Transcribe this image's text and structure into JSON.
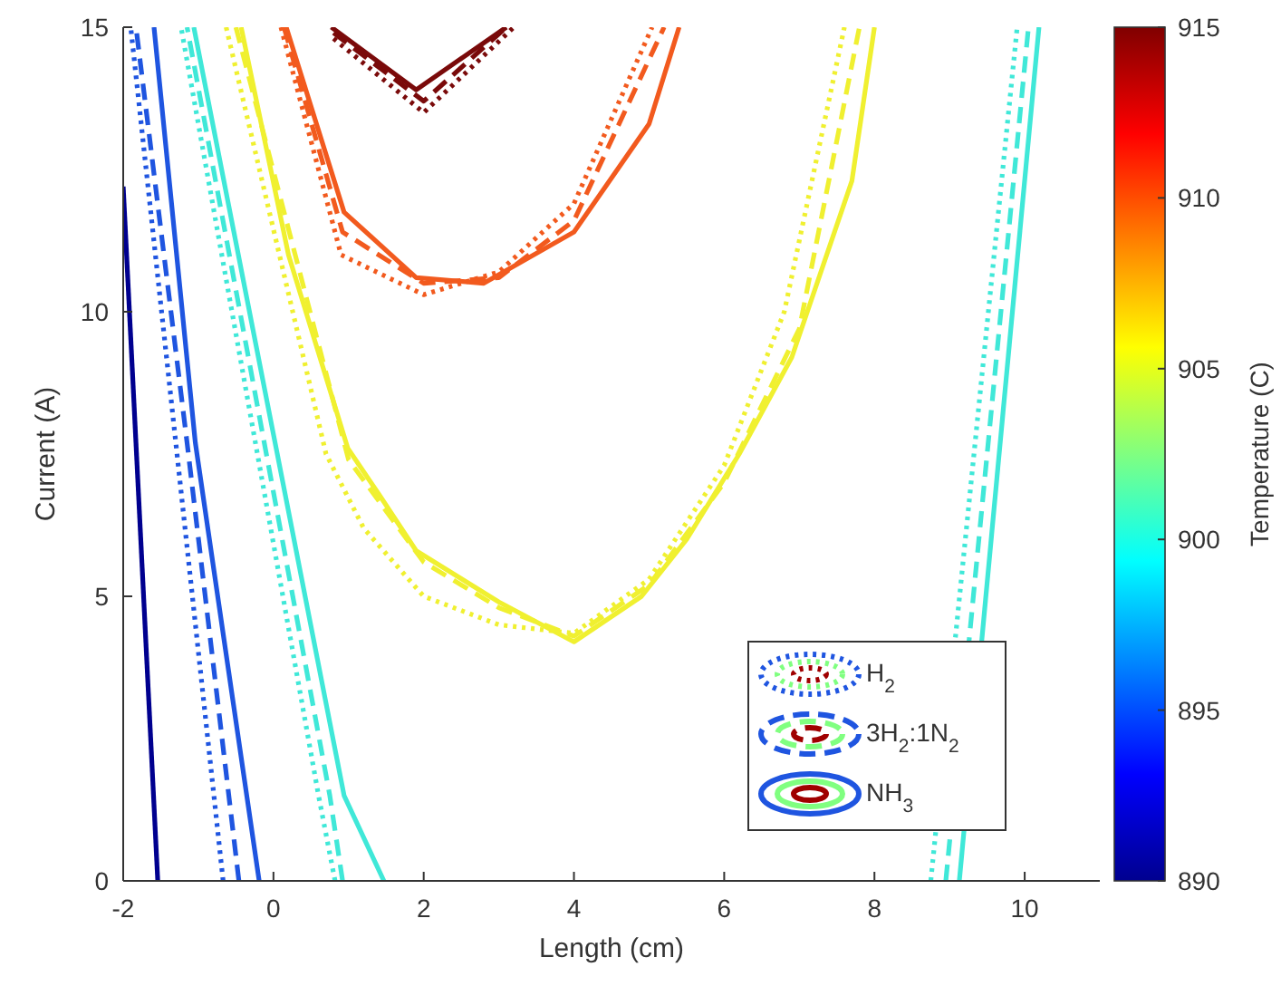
{
  "chart_data": {
    "type": "line",
    "xlabel": "Length (cm)",
    "ylabel": "Current (A)",
    "clabel": "Temperature (C)",
    "xlim": [
      -2,
      11
    ],
    "ylim": [
      0,
      15
    ],
    "xticks": [
      -2,
      0,
      2,
      4,
      6,
      8,
      10
    ],
    "yticks": [
      0,
      5,
      10,
      15
    ],
    "clim": [
      890,
      915
    ],
    "cticks": [
      890,
      895,
      900,
      905,
      910,
      915
    ],
    "grid": false,
    "legend": "bottom right",
    "series": [
      {
        "line_style": "solid",
        "color": "#00008f",
        "x": [
          -1.54,
          -2
        ],
        "values": [
          0,
          12.2
        ]
      },
      {
        "name": "H$_{2}$",
        "line_style": "dotted",
        "color": "#1f55e0",
        "x": [
          -0.67,
          -1.3,
          -1.9
        ],
        "values": [
          0,
          7.7,
          15
        ]
      },
      {
        "name": "3H$_{2}$:1N$_{2}$",
        "line_style": "dashed",
        "color": "#1f55e0",
        "x": [
          -0.46,
          -1.15,
          -1.83
        ],
        "values": [
          0,
          7.7,
          15
        ]
      },
      {
        "name": "NH$_{3}$",
        "line_style": "solid",
        "color": "#1f55e0",
        "x": [
          -0.19,
          -1.04,
          -1.59
        ],
        "values": [
          0,
          7.7,
          15
        ]
      },
      {
        "line_style": "dotted",
        "color": "#40e8d8",
        "x": [
          0.82,
          0.6,
          -1.23
        ],
        "values": [
          0,
          1.5,
          15
        ]
      },
      {
        "line_style": "dashed",
        "color": "#40e8d8",
        "x": [
          0.92,
          0.75,
          -1.15
        ],
        "values": [
          0,
          1.5,
          15
        ]
      },
      {
        "line_style": "solid",
        "color": "#40e8d8",
        "x": [
          1.47,
          0.94,
          -1.06
        ],
        "values": [
          0,
          1.5,
          15
        ]
      },
      {
        "line_style": "dotted",
        "color": "#40e8d8",
        "x": [
          8.75,
          9.9
        ],
        "values": [
          0,
          15
        ]
      },
      {
        "line_style": "dashed",
        "color": "#40e8d8",
        "x": [
          8.95,
          10.05
        ],
        "values": [
          0,
          15
        ]
      },
      {
        "line_style": "solid",
        "color": "#40e8d8",
        "x": [
          9.13,
          10.19
        ],
        "values": [
          0,
          15
        ]
      },
      {
        "line_style": "dotted",
        "color": "#f0f030",
        "x": [
          -0.63,
          0.7,
          1.2,
          2,
          3,
          4,
          5,
          6,
          6.8,
          7.6
        ],
        "values": [
          15,
          7.5,
          6.2,
          5,
          4.5,
          4.35,
          5.3,
          7.3,
          10,
          15
        ]
      },
      {
        "line_style": "dashed",
        "color": "#f0f030",
        "x": [
          -0.5,
          1,
          2,
          3,
          4,
          5,
          6,
          7,
          7.8
        ],
        "values": [
          15,
          7.4,
          5.6,
          4.8,
          4.3,
          5.2,
          7,
          9.7,
          15
        ]
      },
      {
        "line_style": "solid",
        "color": "#f0f030",
        "x": [
          -0.43,
          0.2,
          0.99,
          1.4,
          1.9,
          3,
          4,
          4.9,
          5.5,
          6.2,
          6.9,
          7.7,
          8
        ],
        "values": [
          15,
          11,
          7.6,
          6.8,
          5.8,
          4.9,
          4.2,
          5,
          6,
          7.5,
          9.2,
          12.3,
          15
        ]
      },
      {
        "line_style": "dotted",
        "color": "#f25a1e",
        "x": [
          0.1,
          0.9,
          2,
          3,
          4,
          5.04
        ],
        "values": [
          15,
          11,
          10.3,
          10.7,
          11.9,
          15
        ]
      },
      {
        "line_style": "dashed",
        "color": "#f25a1e",
        "x": [
          0.14,
          0.92,
          2,
          3,
          4,
          5.2
        ],
        "values": [
          15,
          11.4,
          10.5,
          10.6,
          11.6,
          15
        ]
      },
      {
        "line_style": "solid",
        "color": "#f25a1e",
        "x": [
          0.17,
          0.94,
          1.9,
          2.8,
          4,
          5,
          5.4
        ],
        "values": [
          15,
          11.75,
          10.6,
          10.5,
          11.4,
          13.3,
          15
        ]
      },
      {
        "line_style": "dotted",
        "color": "#7a0a0a",
        "x": [
          0.8,
          2,
          3.2
        ],
        "values": [
          14.8,
          13.5,
          15
        ]
      },
      {
        "line_style": "dashed",
        "color": "#7a0a0a",
        "x": [
          0.8,
          2,
          3.1
        ],
        "values": [
          14.9,
          13.7,
          15
        ]
      },
      {
        "line_style": "solid",
        "color": "#7a0a0a",
        "x": [
          0.77,
          1.9,
          3.1
        ],
        "values": [
          15,
          13.9,
          15
        ]
      }
    ]
  }
}
